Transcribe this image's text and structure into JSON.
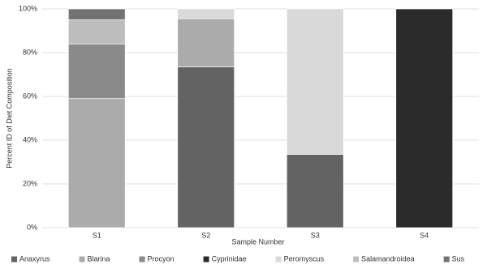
{
  "chart_data": {
    "type": "stacked_bar",
    "x_label": "Sample Number",
    "y_label": "Percent ID of Diet Composition",
    "categories": [
      "S1",
      "S2",
      "S3",
      "S4"
    ],
    "series": [
      {
        "name": "Anaxyrus",
        "color": "#636363",
        "values": [
          0,
          73.5,
          33.5,
          0
        ]
      },
      {
        "name": "Blarina",
        "color": "#ababab",
        "values": [
          59,
          22,
          0,
          0
        ]
      },
      {
        "name": "Procyon",
        "color": "#8a8a8a",
        "values": [
          25,
          0,
          0,
          0
        ]
      },
      {
        "name": "Cyprinidae",
        "color": "#2b2b2b",
        "values": [
          0,
          0,
          0,
          100
        ]
      },
      {
        "name": "Peromyscus",
        "color": "#d9d9d9",
        "values": [
          0,
          4.5,
          66.5,
          0
        ]
      },
      {
        "name": "Salamandroidea",
        "color": "#bdbdbd",
        "values": [
          11,
          0,
          0,
          0
        ]
      },
      {
        "name": "Sus",
        "color": "#737373",
        "values": [
          5,
          0,
          0,
          0
        ]
      }
    ],
    "ylim": [
      0,
      100
    ],
    "yticks": [
      {
        "value": 0,
        "label": "0%"
      },
      {
        "value": 20,
        "label": "20%"
      },
      {
        "value": 40,
        "label": "40%"
      },
      {
        "value": 60,
        "label": "60%"
      },
      {
        "value": 80,
        "label": "80%"
      },
      {
        "value": 100,
        "label": "100%"
      }
    ],
    "grid": true,
    "legend": "bottom"
  }
}
